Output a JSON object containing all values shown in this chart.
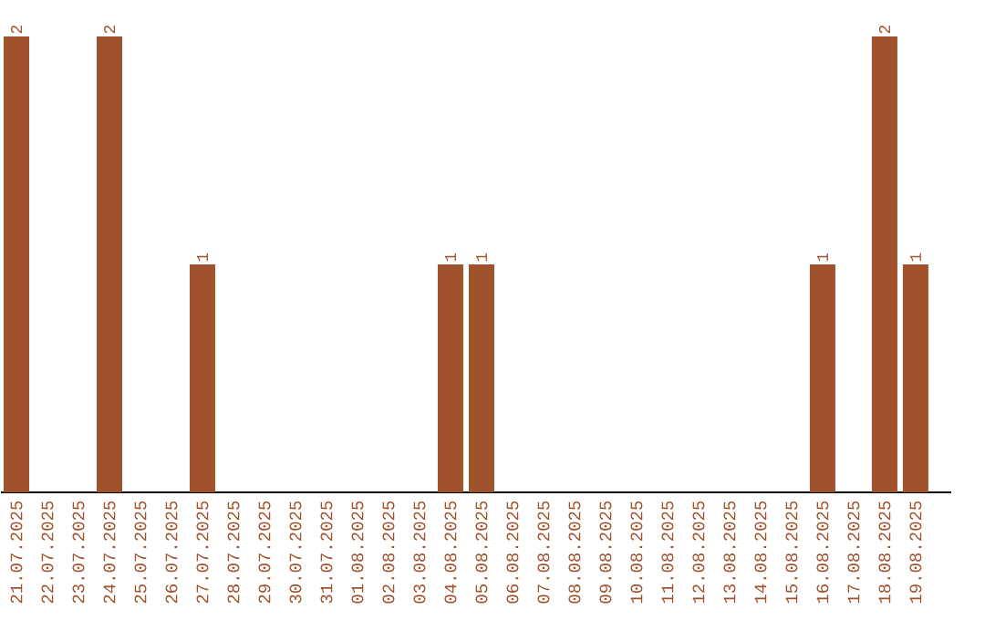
{
  "chart_data": {
    "type": "bar",
    "categories": [
      "21.07.2025",
      "22.07.2025",
      "23.07.2025",
      "24.07.2025",
      "25.07.2025",
      "26.07.2025",
      "27.07.2025",
      "28.07.2025",
      "29.07.2025",
      "30.07.2025",
      "31.07.2025",
      "01.08.2025",
      "02.08.2025",
      "03.08.2025",
      "04.08.2025",
      "05.08.2025",
      "06.08.2025",
      "07.08.2025",
      "08.08.2025",
      "09.08.2025",
      "10.08.2025",
      "11.08.2025",
      "12.08.2025",
      "13.08.2025",
      "14.08.2025",
      "15.08.2025",
      "16.08.2025",
      "17.08.2025",
      "18.08.2025",
      "19.08.2025"
    ],
    "values": [
      2,
      0,
      0,
      2,
      0,
      0,
      1,
      0,
      0,
      0,
      0,
      0,
      0,
      0,
      1,
      1,
      0,
      0,
      0,
      0,
      0,
      0,
      0,
      0,
      0,
      0,
      1,
      0,
      2,
      1
    ],
    "value_labels": [
      "2",
      null,
      null,
      "2",
      null,
      null,
      "1",
      null,
      null,
      null,
      null,
      null,
      null,
      null,
      "1",
      "1",
      null,
      null,
      null,
      null,
      null,
      null,
      null,
      null,
      null,
      null,
      "1",
      null,
      "2",
      "1"
    ],
    "color": "#a0522d",
    "ylim": [
      0,
      2
    ],
    "tick_labels": "x"
  }
}
